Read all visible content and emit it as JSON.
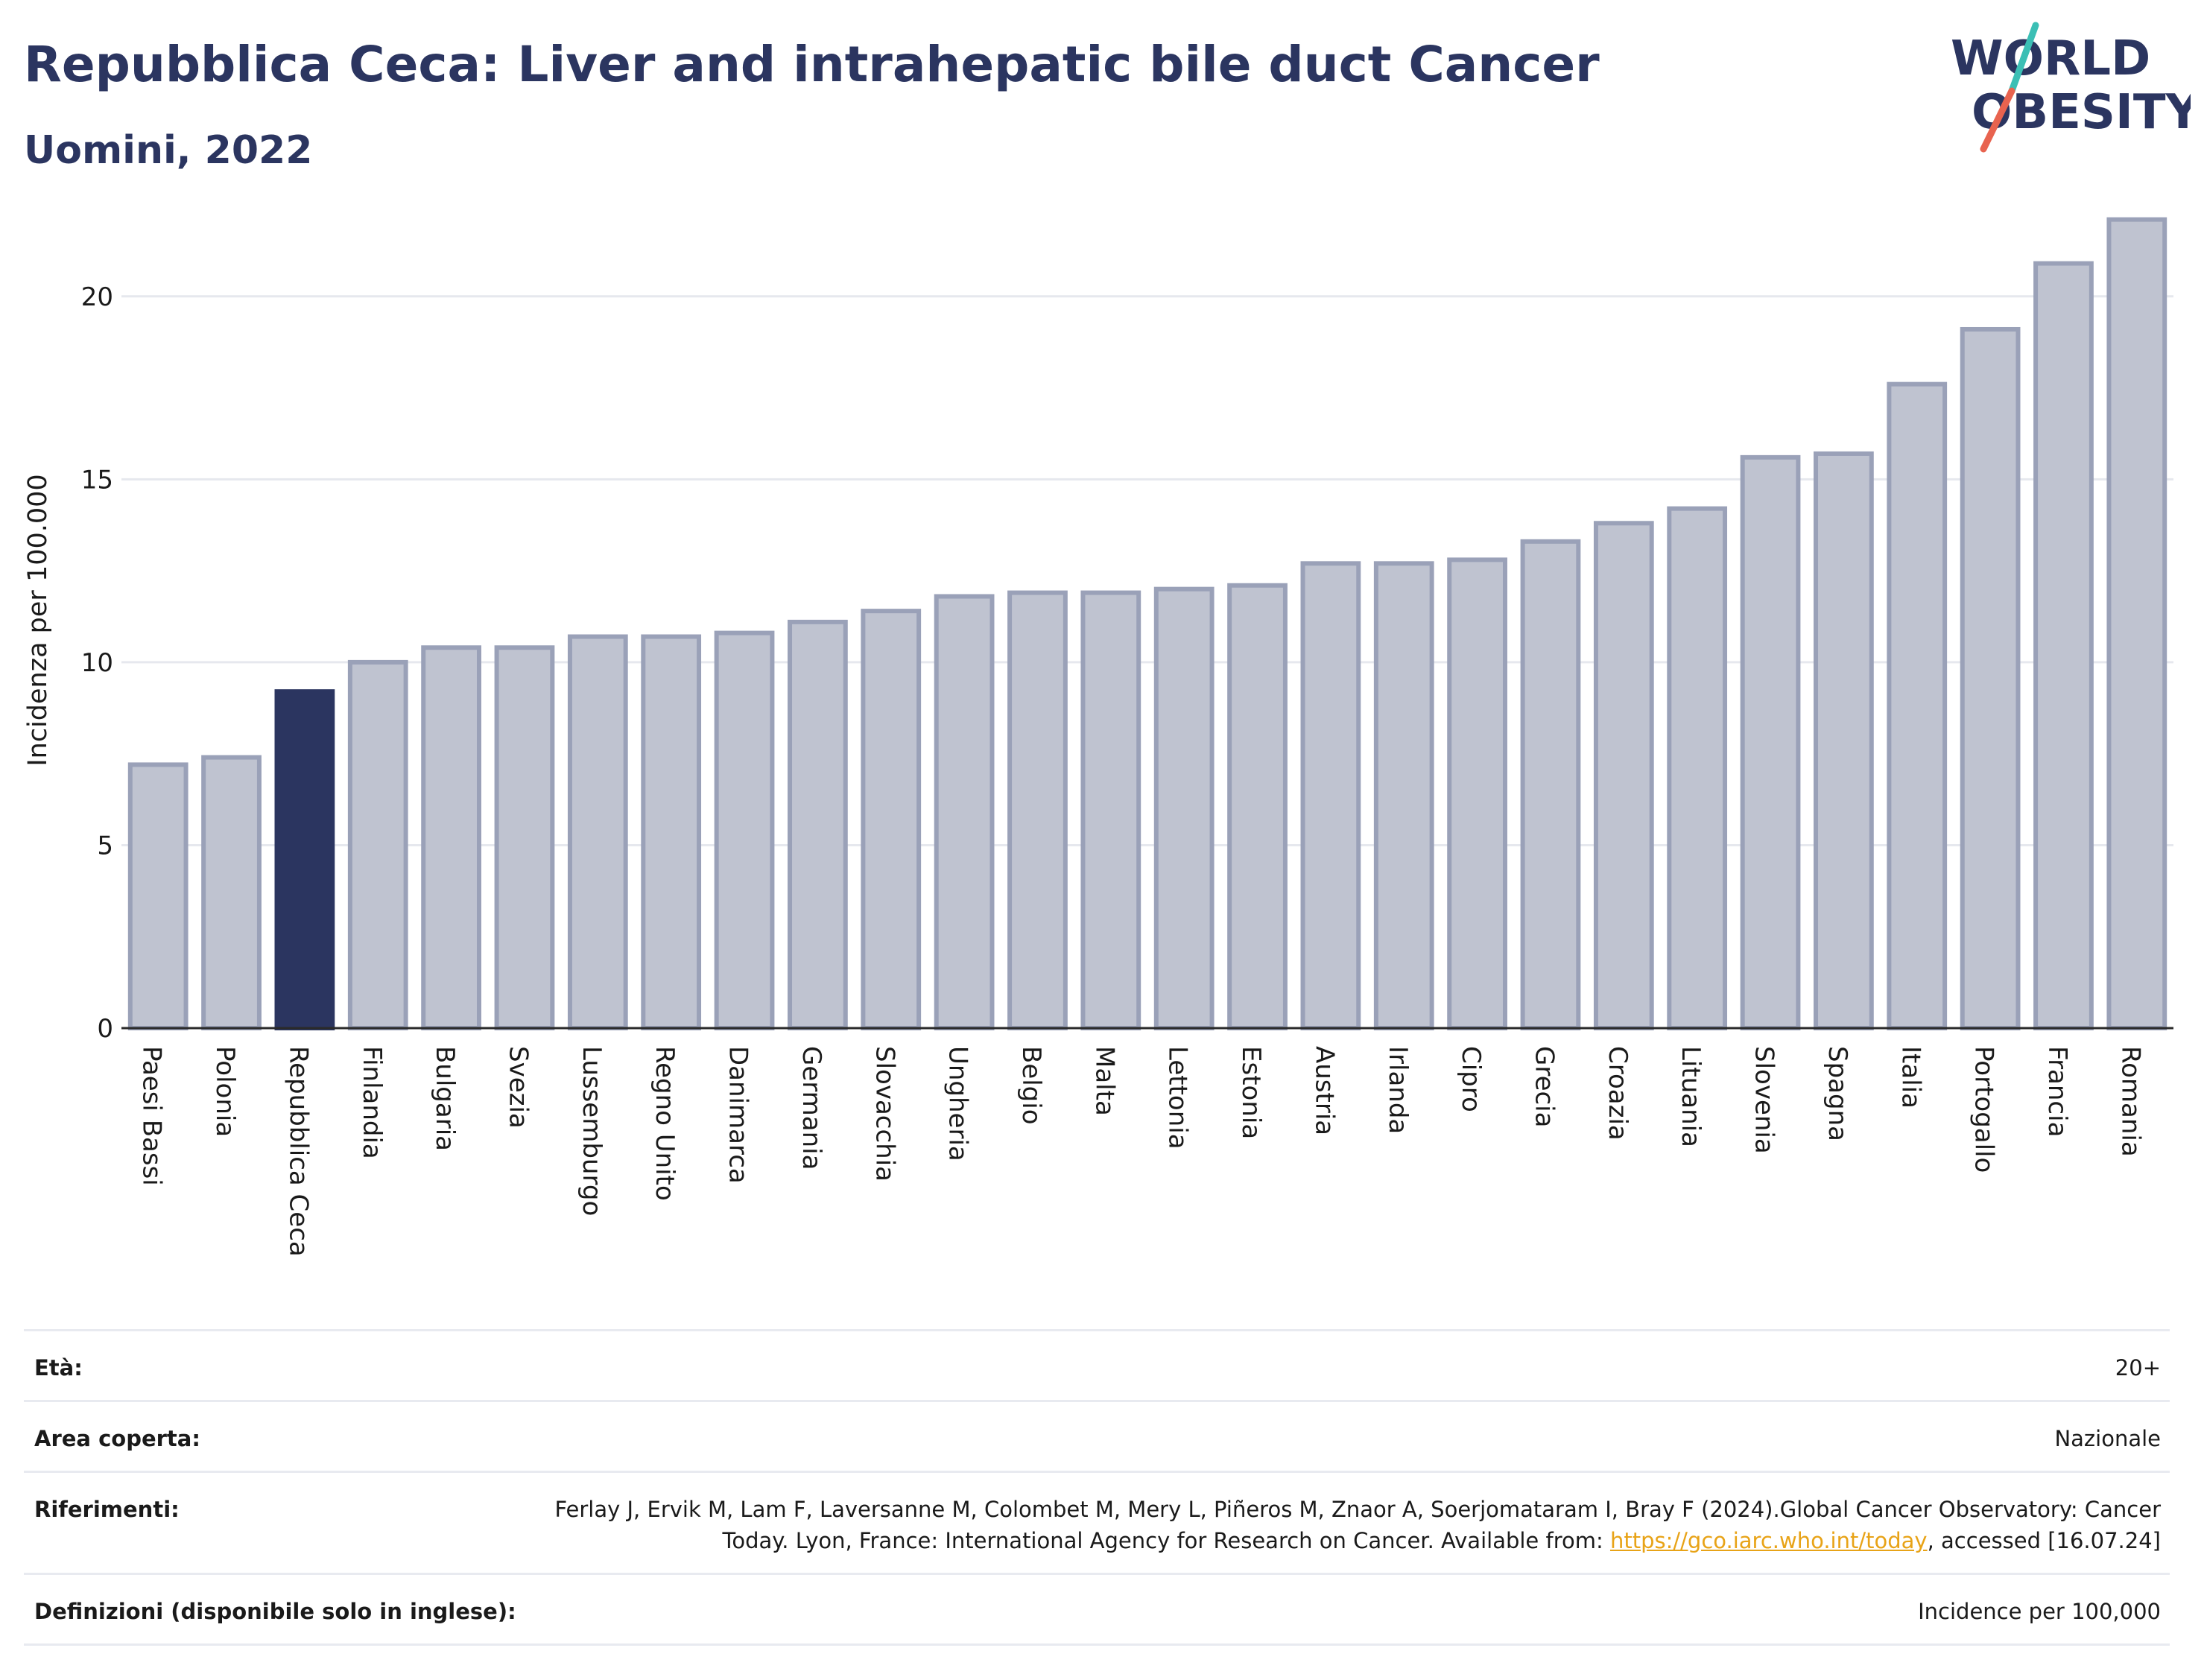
{
  "header": {
    "title": "Repubblica Ceca: Liver and intrahepatic bile duct Cancer",
    "subtitle": "Uomini, 2022"
  },
  "logo": {
    "line1": "WORLD",
    "line2": "OBESITY",
    "accent_colors": [
      "#3bbfb5",
      "#e8634f"
    ],
    "text_color": "#2b3560"
  },
  "chart_data": {
    "type": "bar",
    "title": "Repubblica Ceca: Liver and intrahepatic bile duct Cancer",
    "subtitle": "Uomini, 2022",
    "xlabel": "",
    "ylabel": "Incidenza per 100.000",
    "ylim": [
      0,
      22.5
    ],
    "yticks": [
      0,
      5,
      10,
      15,
      20
    ],
    "grid": true,
    "highlight": "Repubblica Ceca",
    "colors": {
      "bar": "#bfc3d0",
      "bar_edge": "#9aa1b8",
      "highlight": "#2b3560"
    },
    "categories": [
      "Paesi Bassi",
      "Polonia",
      "Repubblica Ceca",
      "Finlandia",
      "Bulgaria",
      "Svezia",
      "Lussemburgo",
      "Regno Unito",
      "Danimarca",
      "Germania",
      "Slovacchia",
      "Ungheria",
      "Belgio",
      "Malta",
      "Lettonia",
      "Estonia",
      "Austria",
      "Irlanda",
      "Cipro",
      "Grecia",
      "Croazia",
      "Lituania",
      "Slovenia",
      "Spagna",
      "Italia",
      "Portogallo",
      "Francia",
      "Romania"
    ],
    "values": [
      7.2,
      7.4,
      9.2,
      10.0,
      10.4,
      10.4,
      10.7,
      10.7,
      10.8,
      11.1,
      11.4,
      11.8,
      11.9,
      11.9,
      12.0,
      12.1,
      12.7,
      12.7,
      12.8,
      13.3,
      13.8,
      14.2,
      15.6,
      15.7,
      17.6,
      19.1,
      20.9,
      22.1
    ]
  },
  "info": {
    "age_label": "Età:",
    "age_value": "20+",
    "area_label": "Area coperta:",
    "area_value": "Nazionale",
    "refs_label": "Riferimenti:",
    "refs_text_before": "Ferlay J, Ervik M, Lam F, Laversanne M, Colombet M, Mery L, Piñeros M, Znaor A, Soerjomataram I, Bray F (2024).Global Cancer Observatory: Cancer Today. Lyon, France: International Agency for Research on Cancer. Available from: ",
    "refs_link": "https://gco.iarc.who.int/today",
    "refs_text_after": ", accessed [16.07.24]",
    "defs_label": "Definizioni (disponibile solo in inglese):",
    "defs_value": "Incidence per 100,000"
  }
}
